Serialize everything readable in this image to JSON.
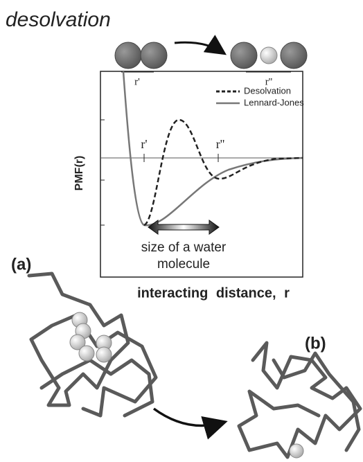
{
  "title": "desolvation",
  "top_diagram": {
    "left_label": "r'",
    "right_label": "r''"
  },
  "plot": {
    "y_label": "PMF(r)",
    "x_label": "interacting distance, r",
    "markers": [
      "r'",
      "r''"
    ],
    "legend": [
      "Desolvation",
      "Lennard-Jones"
    ],
    "annotation": [
      "size of a water",
      "molecule"
    ]
  },
  "panels": [
    "(a)",
    "(b)"
  ]
}
